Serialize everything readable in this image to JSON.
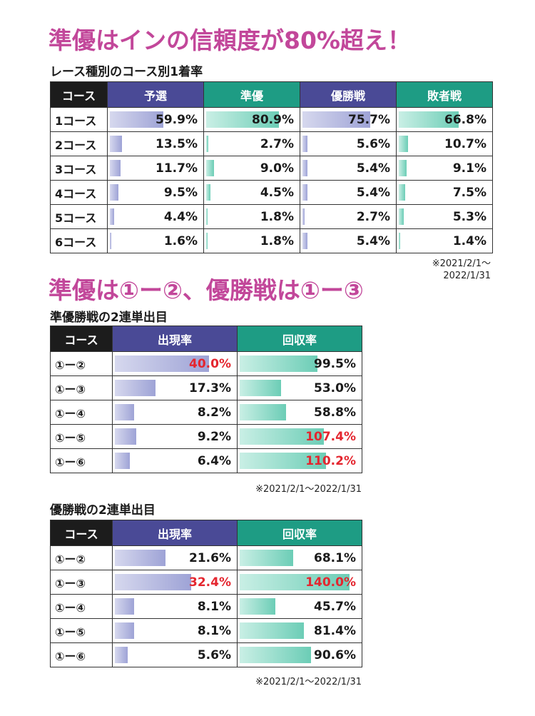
{
  "headline1": "準優はインの信頼度が80%超え！",
  "section1_title": "レース種別のコース別1着率",
  "note1_line1": "※2021/2/1～",
  "note1_line2": "2022/1/31",
  "headline2": "準優は①ー②、優勝戦は①ー③",
  "section2_title": "準優勝戦の2連単出目",
  "note2": "※2021/2/1～2022/1/31",
  "section3_title": "優勝戦の2連単出目",
  "note3": "※2021/2/1～2022/1/31",
  "colors": {
    "purple": "#4a4a96",
    "green": "#1e9c84",
    "headline": "#c2479a",
    "highlight": "#e4262f"
  },
  "chart_data": [
    {
      "type": "table",
      "title": "レース種別のコース別1着率",
      "header_first": "コース",
      "columns": [
        "予選",
        "準優",
        "優勝戦",
        "敗者戦"
      ],
      "rows": [
        {
          "label": "1コース",
          "display": [
            "59.9%",
            "80.9%",
            "75.7%",
            "66.8%"
          ],
          "values": [
            59.9,
            80.9,
            75.7,
            66.8
          ]
        },
        {
          "label": "2コース",
          "display": [
            "13.5%",
            "2.7%",
            "5.6%",
            "10.7%"
          ],
          "values": [
            13.5,
            2.7,
            5.6,
            10.7
          ]
        },
        {
          "label": "3コース",
          "display": [
            "11.7%",
            "9.0%",
            "5.4%",
            "9.1%"
          ],
          "values": [
            11.7,
            9.0,
            5.4,
            9.1
          ]
        },
        {
          "label": "4コース",
          "display": [
            "9.5%",
            "4.5%",
            "5.4%",
            "7.5%"
          ],
          "values": [
            9.5,
            4.5,
            5.4,
            7.5
          ]
        },
        {
          "label": "5コース",
          "display": [
            "4.4%",
            "1.8%",
            "2.7%",
            "5.3%"
          ],
          "values": [
            4.4,
            1.8,
            2.7,
            5.3
          ]
        },
        {
          "label": "6コース",
          "display": [
            "1.6%",
            "1.8%",
            "5.4%",
            "1.4%"
          ],
          "values": [
            1.6,
            1.8,
            5.4,
            1.4
          ]
        }
      ]
    },
    {
      "type": "table",
      "title": "準優勝戦の2連単出目",
      "header_first": "コース",
      "columns": [
        "出現率",
        "回収率"
      ],
      "rows": [
        {
          "label": "①ー②",
          "display": [
            "40.0%",
            "99.5%"
          ],
          "values": [
            40.0,
            99.5
          ],
          "highlight": [
            true,
            false
          ]
        },
        {
          "label": "①ー③",
          "display": [
            "17.3%",
            "53.0%"
          ],
          "values": [
            17.3,
            53.0
          ],
          "highlight": [
            false,
            false
          ]
        },
        {
          "label": "①ー④",
          "display": [
            "8.2%",
            "58.8%"
          ],
          "values": [
            8.2,
            58.8
          ],
          "highlight": [
            false,
            false
          ]
        },
        {
          "label": "①ー⑤",
          "display": [
            "9.2%",
            "107.4%"
          ],
          "values": [
            9.2,
            107.4
          ],
          "highlight": [
            false,
            true
          ]
        },
        {
          "label": "①ー⑥",
          "display": [
            "6.4%",
            "110.2%"
          ],
          "values": [
            6.4,
            110.2
          ],
          "highlight": [
            false,
            true
          ]
        }
      ]
    },
    {
      "type": "table",
      "title": "優勝戦の2連単出目",
      "header_first": "コース",
      "columns": [
        "出現率",
        "回収率"
      ],
      "rows": [
        {
          "label": "①ー②",
          "display": [
            "21.6%",
            "68.1%"
          ],
          "values": [
            21.6,
            68.1
          ],
          "highlight": [
            false,
            false
          ]
        },
        {
          "label": "①ー③",
          "display": [
            "32.4%",
            "140.0%"
          ],
          "values": [
            32.4,
            140.0
          ],
          "highlight": [
            true,
            true
          ]
        },
        {
          "label": "①ー④",
          "display": [
            "8.1%",
            "45.7%"
          ],
          "values": [
            8.1,
            45.7
          ],
          "highlight": [
            false,
            false
          ]
        },
        {
          "label": "①ー⑤",
          "display": [
            "8.1%",
            "81.4%"
          ],
          "values": [
            8.1,
            81.4
          ],
          "highlight": [
            false,
            false
          ]
        },
        {
          "label": "①ー⑥",
          "display": [
            "5.6%",
            "90.6%"
          ],
          "values": [
            5.6,
            90.6
          ],
          "highlight": [
            false,
            false
          ]
        }
      ]
    }
  ]
}
